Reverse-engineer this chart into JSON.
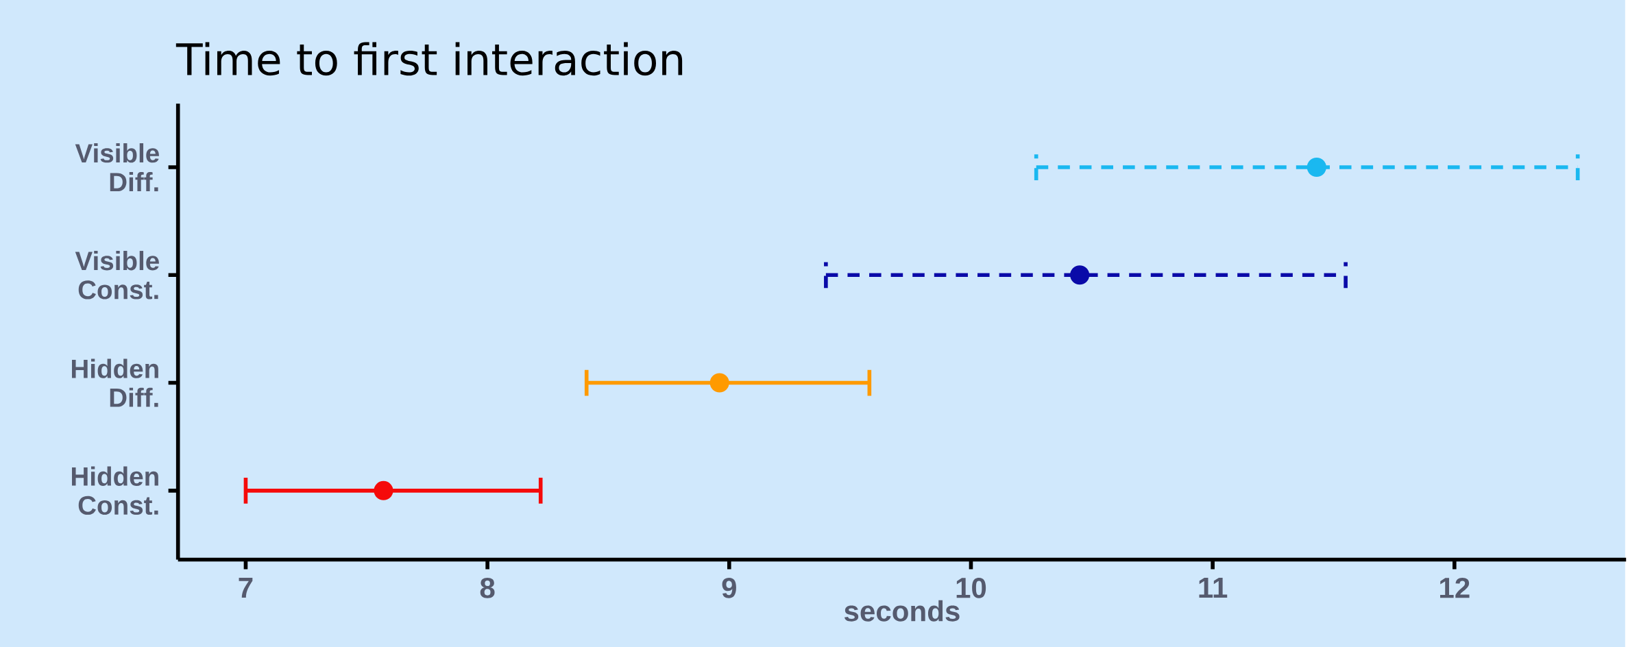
{
  "chart_data": {
    "type": "scatter",
    "orientation": "horizontal",
    "title": "Time to first interaction",
    "xlabel": "seconds",
    "categories": [
      "Visible Diff.",
      "Visible Const.",
      "Hidden Diff.",
      "Hidden Const."
    ],
    "xlim": [
      6.72,
      12.71
    ],
    "xticks": [
      7,
      8,
      9,
      10,
      11,
      12
    ],
    "marker": "circle",
    "grid": false,
    "series": [
      {
        "color": "#1ab8f0",
        "line_style": "dashed",
        "values": [
          11.43,
          null,
          null,
          null
        ],
        "errors": [
          [
            10.27,
            12.51
          ],
          null,
          null,
          null
        ]
      },
      {
        "color": "#0a0aa8",
        "line_style": "dashed",
        "values": [
          null,
          10.45,
          null,
          null
        ],
        "errors": [
          null,
          [
            9.4,
            11.55
          ],
          null,
          null
        ]
      },
      {
        "color": "#ff9a00",
        "line_style": "solid",
        "values": [
          null,
          null,
          8.96,
          null
        ],
        "errors": [
          null,
          null,
          [
            8.41,
            9.58
          ],
          null
        ]
      },
      {
        "color": "#f50a0a",
        "line_style": "solid",
        "values": [
          null,
          null,
          null,
          7.57
        ],
        "errors": [
          null,
          null,
          null,
          [
            7.0,
            8.22
          ]
        ]
      }
    ]
  }
}
